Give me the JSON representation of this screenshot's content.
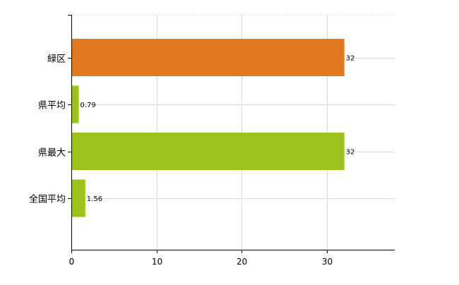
{
  "chart_data": {
    "type": "bar",
    "orientation": "horizontal",
    "categories": [
      "緑区",
      "県平均",
      "県最大",
      "全国平均"
    ],
    "values": [
      32,
      0.79,
      32,
      1.56
    ],
    "value_labels": [
      "32",
      "0.79",
      "32",
      "1.56"
    ],
    "colors": [
      "#e07820",
      "#99c21a",
      "#99c21a",
      "#99c21a"
    ],
    "xlim": [
      0,
      38
    ],
    "xticks": [
      0,
      10,
      20,
      30
    ],
    "grid": true,
    "legend": "none"
  }
}
